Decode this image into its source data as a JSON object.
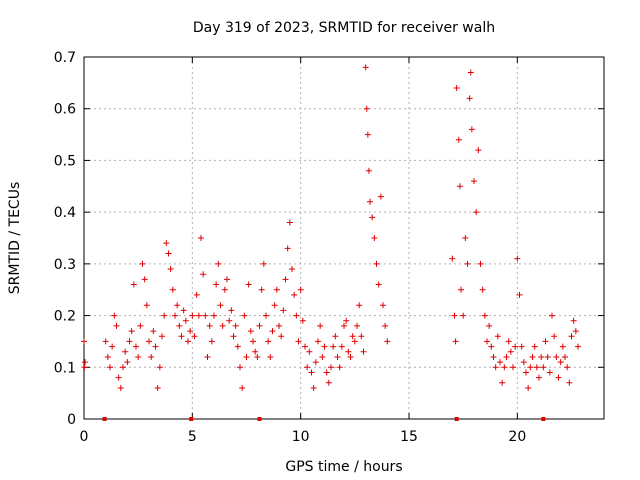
{
  "chart_data": {
    "type": "scatter",
    "title": "Day 319 of 2023, SRMTID for receiver walh",
    "xlabel": "GPS time / hours",
    "ylabel": "SRMTID / TECUs",
    "xlim": [
      0,
      24
    ],
    "ylim": [
      0,
      0.7
    ],
    "xticks": [
      0,
      5,
      10,
      15,
      20
    ],
    "xtick_labels": [
      "0",
      "5",
      "10",
      "15",
      "20"
    ],
    "yticks": [
      0,
      0.1,
      0.2,
      0.3,
      0.4,
      0.5,
      0.6,
      0.7
    ],
    "ytick_labels": [
      "0",
      "0.1",
      "0.2",
      "0.3",
      "0.4",
      "0.5",
      "0.6",
      "0.7"
    ],
    "grid": true,
    "marker": "+",
    "colors": {
      "series": "#e00000",
      "grid": "#b0b0b0",
      "axis": "#000000"
    },
    "series": [
      {
        "name": "SRMTID",
        "points": [
          [
            0.0,
            0.15
          ],
          [
            0.02,
            0.1
          ],
          [
            0.05,
            0.11
          ],
          [
            1.0,
            0.15
          ],
          [
            1.1,
            0.12
          ],
          [
            1.2,
            0.1
          ],
          [
            1.3,
            0.14
          ],
          [
            1.4,
            0.2
          ],
          [
            1.5,
            0.18
          ],
          [
            1.6,
            0.08
          ],
          [
            1.7,
            0.06
          ],
          [
            1.8,
            0.1
          ],
          [
            1.9,
            0.13
          ],
          [
            2.0,
            0.11
          ],
          [
            2.1,
            0.15
          ],
          [
            2.2,
            0.17
          ],
          [
            2.3,
            0.26
          ],
          [
            2.4,
            0.14
          ],
          [
            2.5,
            0.12
          ],
          [
            2.6,
            0.18
          ],
          [
            2.7,
            0.3
          ],
          [
            2.8,
            0.27
          ],
          [
            2.9,
            0.22
          ],
          [
            3.0,
            0.15
          ],
          [
            3.1,
            0.12
          ],
          [
            3.2,
            0.17
          ],
          [
            3.3,
            0.14
          ],
          [
            3.4,
            0.06
          ],
          [
            3.5,
            0.1
          ],
          [
            3.6,
            0.16
          ],
          [
            3.7,
            0.2
          ],
          [
            3.8,
            0.34
          ],
          [
            3.9,
            0.32
          ],
          [
            4.0,
            0.29
          ],
          [
            4.1,
            0.25
          ],
          [
            4.2,
            0.2
          ],
          [
            4.3,
            0.22
          ],
          [
            4.4,
            0.18
          ],
          [
            4.5,
            0.16
          ],
          [
            4.6,
            0.21
          ],
          [
            4.7,
            0.19
          ],
          [
            4.8,
            0.15
          ],
          [
            4.9,
            0.17
          ],
          [
            5.0,
            0.2
          ],
          [
            5.1,
            0.16
          ],
          [
            5.2,
            0.24
          ],
          [
            5.3,
            0.2
          ],
          [
            5.4,
            0.35
          ],
          [
            5.5,
            0.28
          ],
          [
            5.6,
            0.2
          ],
          [
            5.7,
            0.12
          ],
          [
            5.8,
            0.18
          ],
          [
            5.9,
            0.15
          ],
          [
            6.0,
            0.2
          ],
          [
            6.1,
            0.26
          ],
          [
            6.2,
            0.3
          ],
          [
            6.3,
            0.22
          ],
          [
            6.4,
            0.18
          ],
          [
            6.5,
            0.25
          ],
          [
            6.6,
            0.27
          ],
          [
            6.7,
            0.19
          ],
          [
            6.8,
            0.21
          ],
          [
            6.9,
            0.16
          ],
          [
            7.0,
            0.18
          ],
          [
            7.1,
            0.14
          ],
          [
            7.2,
            0.1
          ],
          [
            7.3,
            0.06
          ],
          [
            7.4,
            0.2
          ],
          [
            7.5,
            0.12
          ],
          [
            7.6,
            0.26
          ],
          [
            7.7,
            0.17
          ],
          [
            7.8,
            0.15
          ],
          [
            7.9,
            0.13
          ],
          [
            8.0,
            0.12
          ],
          [
            8.1,
            0.18
          ],
          [
            8.2,
            0.25
          ],
          [
            8.3,
            0.3
          ],
          [
            8.4,
            0.2
          ],
          [
            8.5,
            0.15
          ],
          [
            8.6,
            0.12
          ],
          [
            8.7,
            0.17
          ],
          [
            8.8,
            0.22
          ],
          [
            8.9,
            0.25
          ],
          [
            9.0,
            0.18
          ],
          [
            9.1,
            0.16
          ],
          [
            9.2,
            0.21
          ],
          [
            9.3,
            0.27
          ],
          [
            9.4,
            0.33
          ],
          [
            9.5,
            0.38
          ],
          [
            9.6,
            0.29
          ],
          [
            9.7,
            0.24
          ],
          [
            9.8,
            0.2
          ],
          [
            9.9,
            0.15
          ],
          [
            10.0,
            0.25
          ],
          [
            10.1,
            0.19
          ],
          [
            10.2,
            0.14
          ],
          [
            10.3,
            0.1
          ],
          [
            10.4,
            0.13
          ],
          [
            10.5,
            0.09
          ],
          [
            10.6,
            0.06
          ],
          [
            10.7,
            0.11
          ],
          [
            10.8,
            0.15
          ],
          [
            10.9,
            0.18
          ],
          [
            11.0,
            0.12
          ],
          [
            11.1,
            0.14
          ],
          [
            11.2,
            0.09
          ],
          [
            11.3,
            0.07
          ],
          [
            11.4,
            0.1
          ],
          [
            11.5,
            0.14
          ],
          [
            11.6,
            0.16
          ],
          [
            11.7,
            0.12
          ],
          [
            11.8,
            0.1
          ],
          [
            11.9,
            0.14
          ],
          [
            12.0,
            0.18
          ],
          [
            12.1,
            0.19
          ],
          [
            12.2,
            0.13
          ],
          [
            12.3,
            0.12
          ],
          [
            12.4,
            0.16
          ],
          [
            12.5,
            0.15
          ],
          [
            12.6,
            0.18
          ],
          [
            12.7,
            0.22
          ],
          [
            12.8,
            0.16
          ],
          [
            12.9,
            0.13
          ],
          [
            13.0,
            0.68
          ],
          [
            13.05,
            0.6
          ],
          [
            13.1,
            0.55
          ],
          [
            13.15,
            0.48
          ],
          [
            13.2,
            0.42
          ],
          [
            13.3,
            0.39
          ],
          [
            13.4,
            0.35
          ],
          [
            13.5,
            0.3
          ],
          [
            13.6,
            0.26
          ],
          [
            13.7,
            0.43
          ],
          [
            13.8,
            0.22
          ],
          [
            13.9,
            0.18
          ],
          [
            14.0,
            0.15
          ],
          [
            17.0,
            0.31
          ],
          [
            17.1,
            0.2
          ],
          [
            17.15,
            0.15
          ],
          [
            17.2,
            0.64
          ],
          [
            17.3,
            0.54
          ],
          [
            17.35,
            0.45
          ],
          [
            17.4,
            0.25
          ],
          [
            17.5,
            0.2
          ],
          [
            17.6,
            0.35
          ],
          [
            17.7,
            0.3
          ],
          [
            17.8,
            0.62
          ],
          [
            17.85,
            0.67
          ],
          [
            17.9,
            0.56
          ],
          [
            18.0,
            0.46
          ],
          [
            18.1,
            0.4
          ],
          [
            18.2,
            0.52
          ],
          [
            18.3,
            0.3
          ],
          [
            18.4,
            0.25
          ],
          [
            18.5,
            0.2
          ],
          [
            18.6,
            0.15
          ],
          [
            18.7,
            0.18
          ],
          [
            18.8,
            0.14
          ],
          [
            18.9,
            0.12
          ],
          [
            19.0,
            0.1
          ],
          [
            19.1,
            0.16
          ],
          [
            19.2,
            0.11
          ],
          [
            19.3,
            0.07
          ],
          [
            19.4,
            0.1
          ],
          [
            19.5,
            0.12
          ],
          [
            19.6,
            0.15
          ],
          [
            19.7,
            0.13
          ],
          [
            19.8,
            0.1
          ],
          [
            19.9,
            0.14
          ],
          [
            20.0,
            0.31
          ],
          [
            20.1,
            0.24
          ],
          [
            20.2,
            0.14
          ],
          [
            20.3,
            0.11
          ],
          [
            20.4,
            0.09
          ],
          [
            20.5,
            0.06
          ],
          [
            20.6,
            0.1
          ],
          [
            20.7,
            0.12
          ],
          [
            20.8,
            0.14
          ],
          [
            20.9,
            0.1
          ],
          [
            21.0,
            0.08
          ],
          [
            21.1,
            0.12
          ],
          [
            21.2,
            0.1
          ],
          [
            21.3,
            0.15
          ],
          [
            21.4,
            0.12
          ],
          [
            21.5,
            0.09
          ],
          [
            21.6,
            0.2
          ],
          [
            21.7,
            0.16
          ],
          [
            21.8,
            0.12
          ],
          [
            21.9,
            0.08
          ],
          [
            22.0,
            0.11
          ],
          [
            22.1,
            0.14
          ],
          [
            22.2,
            0.12
          ],
          [
            22.3,
            0.1
          ],
          [
            22.4,
            0.07
          ],
          [
            22.5,
            0.16
          ],
          [
            22.6,
            0.19
          ],
          [
            22.7,
            0.17
          ],
          [
            22.8,
            0.14
          ]
        ]
      }
    ],
    "baseline_markers": [
      {
        "x": 0.95,
        "y": 0
      },
      {
        "x": 4.95,
        "y": 0
      },
      {
        "x": 8.1,
        "y": 0
      },
      {
        "x": 17.2,
        "y": 0
      },
      {
        "x": 21.2,
        "y": 0
      }
    ]
  }
}
